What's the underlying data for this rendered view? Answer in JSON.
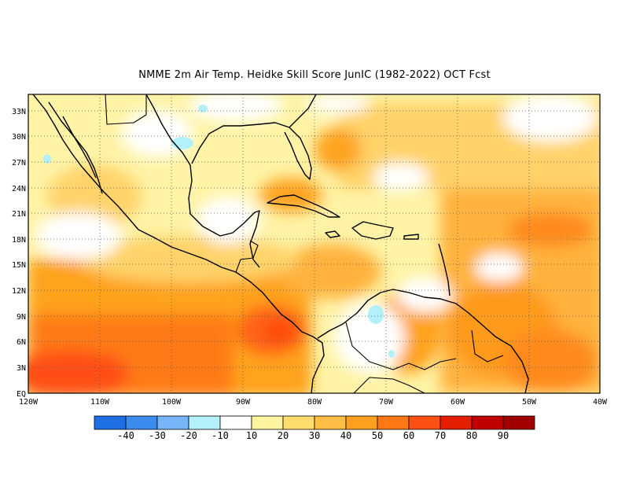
{
  "title": "NMME  2m Air Temp. Heidke Skill Score JunIC (1982-2022) OCT Fcst",
  "map": {
    "lat_labels": [
      "EQ",
      "3N",
      "6N",
      "9N",
      "12N",
      "15N",
      "18N",
      "21N",
      "24N",
      "27N",
      "30N",
      "33N"
    ],
    "lon_labels": [
      "120W",
      "110W",
      "100W",
      "90W",
      "80W",
      "70W",
      "60W",
      "50W",
      "40W"
    ],
    "lat_range": [
      0,
      35
    ],
    "lon_range": [
      -120,
      -40
    ],
    "grid": "dotted"
  },
  "colorbar": {
    "labels": [
      "-40",
      "-30",
      "-20",
      "-10",
      "10",
      "20",
      "30",
      "40",
      "50",
      "60",
      "70",
      "80",
      "90"
    ],
    "colors": [
      "#1e6ee6",
      "#3c8cf0",
      "#78b4f8",
      "#b4f0fa",
      "#ffffff",
      "#fff5a0",
      "#ffdc6e",
      "#ffbe46",
      "#ffa01e",
      "#ff7814",
      "#ff5014",
      "#e61e00",
      "#c00000",
      "#a00000"
    ]
  }
}
